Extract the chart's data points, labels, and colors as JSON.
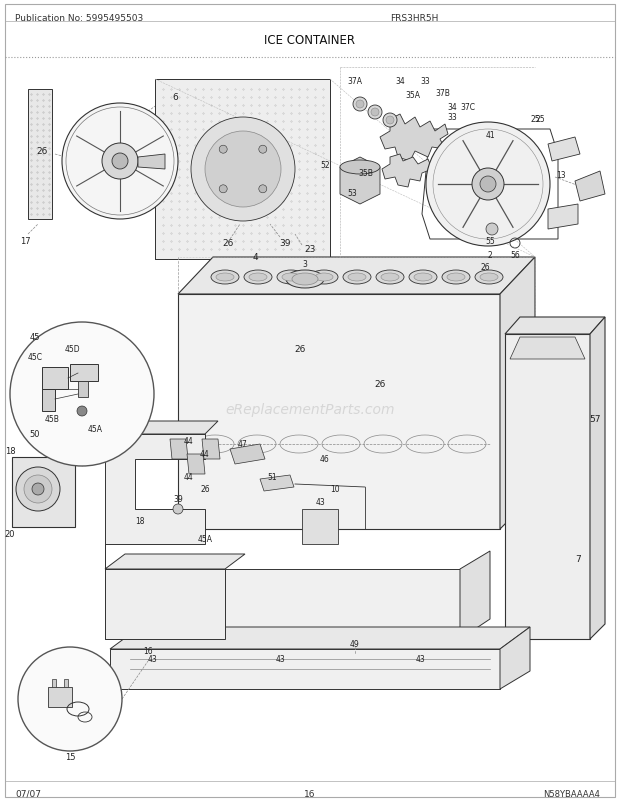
{
  "title": "ICE CONTAINER",
  "pub_no": "Publication No: 5995495503",
  "model": "FRS3HR5H",
  "page": "16",
  "date": "07/07",
  "diagram_code": "N58YBAAAA4",
  "bg_color": "#ffffff",
  "line_color": "#333333",
  "fig_width": 6.2,
  "fig_height": 8.03,
  "dpi": 100,
  "watermark": "eReplacementParts.com"
}
